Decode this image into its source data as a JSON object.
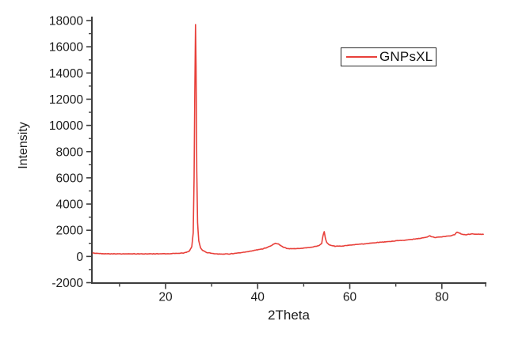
{
  "chart_data": {
    "type": "line",
    "title": "",
    "xlabel": "2Theta",
    "ylabel": "Intensity",
    "x_range": [
      4,
      89.5
    ],
    "y_range": [
      -2000,
      18000
    ],
    "x_major_ticks": [
      20,
      40,
      60,
      80
    ],
    "x_minor_ticks": [
      10,
      30,
      50,
      70,
      89.5
    ],
    "y_major_ticks": [
      -2000,
      0,
      2000,
      4000,
      6000,
      8000,
      10000,
      12000,
      14000,
      16000,
      18000
    ],
    "y_minor_ticks": [
      -1000,
      1000,
      3000,
      5000,
      7000,
      9000,
      11000,
      13000,
      15000,
      17000
    ],
    "grid": false,
    "legend_position": "top-right",
    "axis_color": "#3d3d3d",
    "text_color": "#1c1c1c",
    "noise_amplitude": 25,
    "legend": {
      "entries": [
        {
          "label": "GNPsXL",
          "color": "#e8403a"
        }
      ]
    },
    "series": [
      {
        "name": "GNPsXL",
        "color": "#e8403a",
        "points": [
          [
            4.2,
            260
          ],
          [
            5,
            235
          ],
          [
            6.5,
            215
          ],
          [
            8,
            205
          ],
          [
            10,
            200
          ],
          [
            12,
            195
          ],
          [
            14,
            195
          ],
          [
            16,
            198
          ],
          [
            18,
            205
          ],
          [
            20,
            210
          ],
          [
            22,
            225
          ],
          [
            23.5,
            250
          ],
          [
            24.5,
            300
          ],
          [
            25.2,
            420
          ],
          [
            25.7,
            750
          ],
          [
            26.0,
            1800
          ],
          [
            26.2,
            6000
          ],
          [
            26.35,
            12500
          ],
          [
            26.5,
            17700
          ],
          [
            26.62,
            14500
          ],
          [
            26.78,
            6500
          ],
          [
            26.95,
            2600
          ],
          [
            27.2,
            1200
          ],
          [
            27.6,
            650
          ],
          [
            28.2,
            420
          ],
          [
            29,
            300
          ],
          [
            30,
            240
          ],
          [
            31,
            200
          ],
          [
            32,
            185
          ],
          [
            33,
            185
          ],
          [
            34,
            200
          ],
          [
            35,
            230
          ],
          [
            36,
            270
          ],
          [
            37,
            310
          ],
          [
            38,
            370
          ],
          [
            39,
            440
          ],
          [
            40,
            510
          ],
          [
            41,
            580
          ],
          [
            42,
            680
          ],
          [
            42.8,
            800
          ],
          [
            43.5,
            950
          ],
          [
            44,
            1010
          ],
          [
            44.5,
            950
          ],
          [
            45,
            830
          ],
          [
            45.7,
            690
          ],
          [
            46.5,
            600
          ],
          [
            47.5,
            590
          ],
          [
            48.5,
            600
          ],
          [
            49.5,
            620
          ],
          [
            50.5,
            660
          ],
          [
            51.5,
            700
          ],
          [
            52.5,
            760
          ],
          [
            53.3,
            830
          ],
          [
            53.9,
            1000
          ],
          [
            54.2,
            1600
          ],
          [
            54.45,
            1900
          ],
          [
            54.7,
            1400
          ],
          [
            55,
            1050
          ],
          [
            55.5,
            900
          ],
          [
            56.2,
            800
          ],
          [
            57,
            780
          ],
          [
            58,
            790
          ],
          [
            59,
            820
          ],
          [
            60,
            860
          ],
          [
            61,
            900
          ],
          [
            62,
            930
          ],
          [
            63,
            960
          ],
          [
            64,
            1000
          ],
          [
            65,
            1030
          ],
          [
            66,
            1060
          ],
          [
            67,
            1090
          ],
          [
            68,
            1120
          ],
          [
            69,
            1150
          ],
          [
            70,
            1190
          ],
          [
            71,
            1220
          ],
          [
            72,
            1250
          ],
          [
            73,
            1290
          ],
          [
            74,
            1320
          ],
          [
            75,
            1370
          ],
          [
            76,
            1420
          ],
          [
            76.8,
            1480
          ],
          [
            77.3,
            1580
          ],
          [
            77.8,
            1500
          ],
          [
            78.5,
            1460
          ],
          [
            79.2,
            1470
          ],
          [
            80,
            1500
          ],
          [
            81,
            1540
          ],
          [
            82,
            1590
          ],
          [
            82.8,
            1680
          ],
          [
            83.3,
            1850
          ],
          [
            83.8,
            1780
          ],
          [
            84.5,
            1680
          ],
          [
            85.2,
            1660
          ],
          [
            86,
            1700
          ],
          [
            86.8,
            1720
          ],
          [
            87.5,
            1690
          ],
          [
            88.2,
            1700
          ],
          [
            89,
            1690
          ]
        ]
      }
    ]
  }
}
